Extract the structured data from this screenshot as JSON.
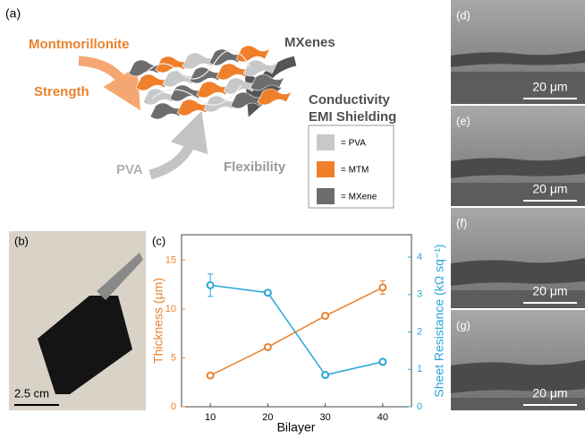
{
  "panel_a": {
    "label": "(a)",
    "montmorillonite": "Montmorillonite",
    "strength": "Strength",
    "mxenes": "MXenes",
    "conductivity": "Conductivity",
    "emi_shielding": "EMI Shielding",
    "pva": "PVA",
    "flexibility": "Flexibility",
    "legend": [
      "= PVA",
      "= MTM",
      "= MXene"
    ]
  },
  "panel_b": {
    "label": "(b)",
    "scale_bar": "2.5 cm"
  },
  "chart_data": {
    "type": "line",
    "label": "(c)",
    "x_label": "Bilayer",
    "y_label": "Thickness (μm)",
    "y2_label": "Sheet Resistance (kΩ sq⁻¹)",
    "x": [
      10,
      20,
      30,
      40
    ],
    "series": [
      {
        "color": "#e8822f",
        "values": [
          3.2,
          6.1,
          9.3,
          12.2
        ],
        "errors": [
          0.2,
          0.2,
          0.2,
          0.7
        ]
      },
      {
        "color": "#2aa5d8",
        "axis": "y2",
        "values": [
          3.25,
          3.05,
          0.85,
          1.2
        ],
        "errors": [
          0.3,
          0.05,
          0.05,
          0.05
        ]
      }
    ],
    "xlim": [
      5,
      45
    ],
    "xticks": [
      10,
      20,
      30,
      40
    ],
    "ylim": [
      0,
      17.6
    ],
    "yticks": [
      0,
      5,
      10,
      15
    ],
    "y2lim": [
      0,
      4.6
    ],
    "y2ticks": [
      0,
      1,
      2,
      3,
      4
    ]
  },
  "sem_panels": [
    {
      "label": "(d)",
      "scale_bar": "20 μm"
    },
    {
      "label": "(e)",
      "scale_bar": "20 μm"
    },
    {
      "label": "(f)",
      "scale_bar": "20 μm"
    },
    {
      "label": "(g)",
      "scale_bar": "20 μm"
    }
  ]
}
